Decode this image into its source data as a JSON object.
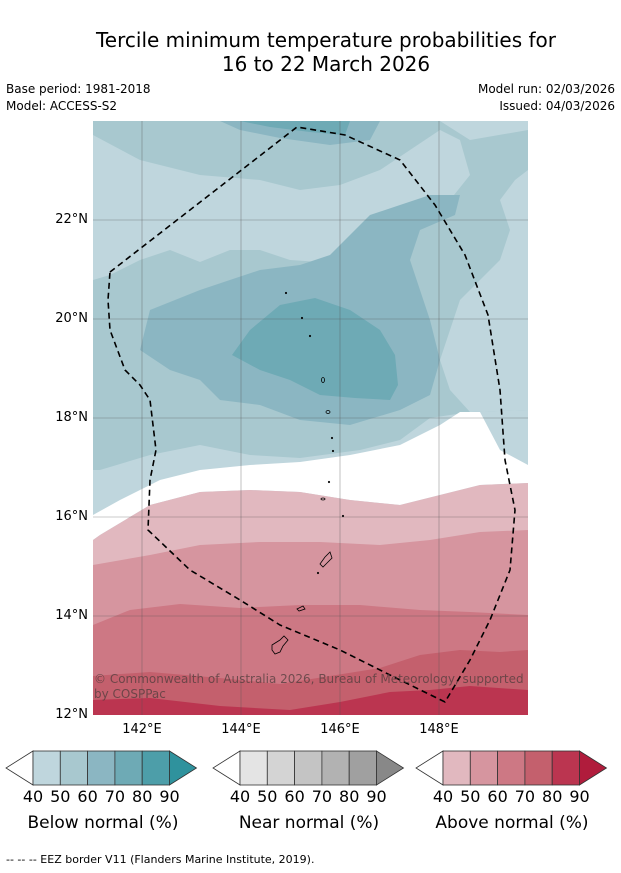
{
  "title_line1": "Tercile minimum temperature probabilities for",
  "title_line2": "16 to 22 March 2026",
  "meta": {
    "base_period": "Base period: 1981-2018",
    "model": "Model: ACCESS-S2",
    "model_run": "Model run: 02/03/2026",
    "issued": "Issued: 04/03/2026"
  },
  "map": {
    "lat_labels": [
      "22°N",
      "20°N",
      "18°N",
      "16°N",
      "14°N",
      "12°N"
    ],
    "lon_labels": [
      "142°E",
      "144°E",
      "146°E",
      "148°E"
    ],
    "copyright": "© Commonwealth of Australia 2026, Bureau of Meteorology, supported by COSPPac",
    "colors": {
      "below": [
        "#bfd6dd",
        "#a8c8cf",
        "#8bb6c2",
        "#6eaab5",
        "#4d9ea9",
        "#2f929d"
      ],
      "near": [
        "#e4e4e4",
        "#d4d4d4",
        "#c4c4c4",
        "#b2b2b2",
        "#a0a0a0",
        "#888888"
      ],
      "above": [
        "#e1b8bf",
        "#d6959f",
        "#cd7884",
        "#c4606d",
        "#bb3550",
        "#b01c3c"
      ]
    }
  },
  "legend": {
    "ticks": [
      "40",
      "50",
      "60",
      "70",
      "80",
      "90"
    ],
    "below_title": "Below normal (%)",
    "near_title": "Near normal (%)",
    "above_title": "Above normal (%)"
  },
  "footer": "--  --  -- EEZ border V11 (Flanders Marine Institute, 2019)."
}
